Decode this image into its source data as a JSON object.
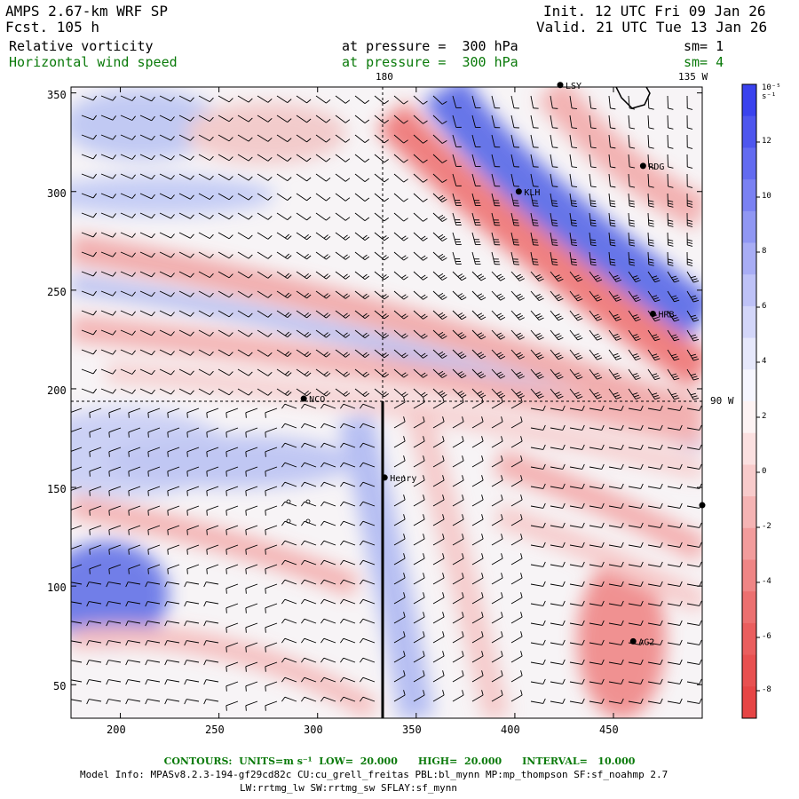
{
  "header": {
    "model": "AMPS 2.67-km WRF SP",
    "forecast": "Fcst. 105 h",
    "init": "Init. 12 UTC Fri 09 Jan 26",
    "valid": "Valid. 21 UTC Tue 13 Jan 26",
    "field1_name": "Relative vorticity",
    "field1_level": "at pressure =  300 hPa",
    "field1_smooth": "sm= 1",
    "field2_name": "Horizontal wind speed",
    "field2_level": "at pressure =  300 hPa",
    "field2_smooth": "sm= 4"
  },
  "map": {
    "x_ticks": [
      "200",
      "250",
      "300",
      "350",
      "400",
      "450"
    ],
    "y_ticks": [
      "350",
      "300",
      "250",
      "200",
      "150",
      "100",
      "50"
    ],
    "meridian_labels": {
      "top_180": "180",
      "top_135w": "135 W",
      "right_90w": "90 W"
    },
    "stations": [
      {
        "name": "LSY",
        "x": 423,
        "y": 354
      },
      {
        "name": "RDG",
        "x": 465,
        "y": 313
      },
      {
        "name": "KLH",
        "x": 402,
        "y": 300
      },
      {
        "name": "HRB",
        "x": 470,
        "y": 238
      },
      {
        "name": "NCO",
        "x": 293,
        "y": 195
      },
      {
        "name": "Henry",
        "x": 334,
        "y": 155
      },
      {
        "name": "AG2",
        "x": 460,
        "y": 72
      },
      {
        "name": "",
        "x": 495,
        "y": 141
      }
    ],
    "colors": {
      "positive": "#2b3bef",
      "negative": "#ef3b3b",
      "neutral": "#ffffff"
    }
  },
  "colorbar": {
    "unit_label": "10⁻⁵ s⁻¹",
    "labels": [
      "12",
      "10",
      "8",
      "6",
      "4",
      "2",
      "0",
      "-2",
      "-4",
      "-6",
      "-8"
    ]
  },
  "footer": {
    "contours": "CONTOURS:  UNITS=m s⁻¹  LOW=  20.000      HIGH=  20.000      INTERVAL=   10.000",
    "model_info": "Model Info: MPASv8.2.3-194-gf29cd82c CU:cu_grell_freitas PBL:bl_mynn MP:mp_thompson SF:sf_noahmp 2.7",
    "model_info2": "LW:rrtmg_lw SW:rrtmg_sw SFLAY:sf_mynn"
  }
}
